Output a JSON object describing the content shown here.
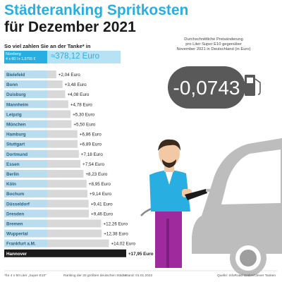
{
  "title_line1": "Städteranking Spritkosten",
  "title_line2": "für Dezember 2021",
  "subtitle": "So viel zahlen Sie an der Tanke* in",
  "reference": {
    "city": "Nürnberg",
    "formula": "4 x 60 l x 1,5755 €",
    "value_text": "≈378,12 Euro"
  },
  "avg_change": {
    "label_lines": [
      "Durchschnittliche Preisänderung",
      "pro Liter Super E10 gegenüber",
      "November 2021 in Deutschland (in Euro)"
    ],
    "value": "-0,0743"
  },
  "chart_data": {
    "type": "bar",
    "orientation": "horizontal",
    "title": "Städteranking Spritkosten für Dezember 2021",
    "categories": [
      "Bielefeld",
      "Bonn",
      "Duisburg",
      "Mannheim",
      "Leipzig",
      "München",
      "Hamburg",
      "Stuttgart",
      "Dortmund",
      "Essen",
      "Berlin",
      "Köln",
      "Bochum",
      "Düsseldorf",
      "Dresden",
      "Bremen",
      "Wuppertal",
      "Frankfurt a.M.",
      "Hannover"
    ],
    "values": [
      2.04,
      3.48,
      4.08,
      4.78,
      5.3,
      5.5,
      6.86,
      6.89,
      7.18,
      7.54,
      8.23,
      8.95,
      9.14,
      9.41,
      9.46,
      12.26,
      12.38,
      14.02,
      17.95
    ],
    "value_labels": [
      "+2,04 Euro",
      "+3,48 Euro",
      "+4,08 Euro",
      "+4,78 Euro",
      "+5,30 Euro",
      "+5,50 Euro",
      "+6,86 Euro",
      "+6,89 Euro",
      "+7,18 Euro",
      "+7,54 Euro",
      "+8,23 Euro",
      "+8,95 Euro",
      "+9,14 Euro",
      "+9,41 Euro",
      "+9,46 Euro",
      "+12,26 Euro",
      "+12,38 Euro",
      "+14,02 Euro",
      "+17,95 Euro"
    ],
    "unit": "Euro",
    "highlight": "Hannover",
    "xlim": [
      0,
      17.95
    ]
  },
  "footer": {
    "footnote": "*für 4 x 60 Liter „Super E10\"",
    "ranking": "Ranking der 20 größten deutschen Städte",
    "date": "Stand: 01.01.2022",
    "source": "Quelle: InfoRoad GmbH/Clever Tanken"
  },
  "colors": {
    "accent": "#29aee1",
    "label_bg": "#b9ddef",
    "bar": "#d8d8d8",
    "highlight": "#1b1b1b"
  }
}
